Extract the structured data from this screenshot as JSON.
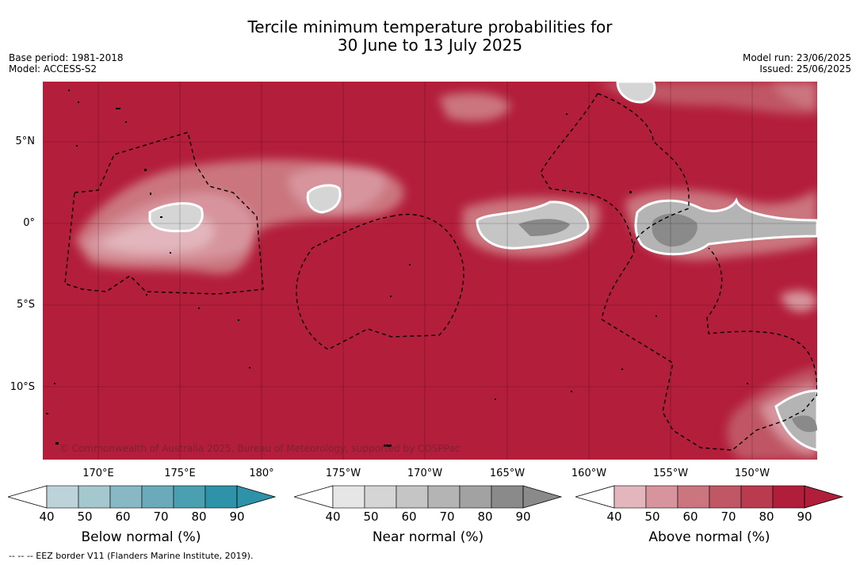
{
  "title_line1": "Tercile minimum temperature probabilities for",
  "title_line2": "30 June to 13 July 2025",
  "meta_left": [
    "Base period: 1981-2018",
    "Model: ACCESS-S2"
  ],
  "meta_right": [
    "Model run: 23/06/2025",
    "Issued: 25/06/2025"
  ],
  "copyright": "© Commonwealth of Australia 2025, Bureau of Meteorology, supported by COSPPac",
  "lat_labels": [
    "5°N",
    "0°",
    "5°S",
    "10°S"
  ],
  "lon_labels": [
    "170°E",
    "175°E",
    "180°",
    "175°W",
    "170°W",
    "165°W",
    "160°W",
    "155°W",
    "150°W"
  ],
  "colorbars": [
    {
      "title": "Below normal (%)",
      "ticks": [
        "40",
        "50",
        "60",
        "70",
        "80",
        "90"
      ],
      "colors": [
        "#bdd3da",
        "#a5c8cf",
        "#88b8c4",
        "#6aaab9",
        "#4a9fb0",
        "#2e93a8"
      ]
    },
    {
      "title": "Near normal (%)",
      "ticks": [
        "40",
        "50",
        "60",
        "70",
        "80",
        "90"
      ],
      "colors": [
        "#e6e6e6",
        "#d5d5d5",
        "#c5c5c5",
        "#b4b4b4",
        "#a2a2a2",
        "#8a8a8a"
      ]
    },
    {
      "title": "Above normal (%)",
      "ticks": [
        "40",
        "50",
        "60",
        "70",
        "80",
        "90"
      ],
      "colors": [
        "#e2b6bc",
        "#d7949d",
        "#cb767f",
        "#c05765",
        "#b83b4e",
        "#b01e3a"
      ]
    }
  ],
  "footer": "--  --  -- EEZ border V11 (Flanders Marine Institute, 2019).",
  "colors": {
    "above_max": "#b31e3a",
    "near_patch": "#8f8f8f",
    "below_light": "#d8e3e6"
  }
}
